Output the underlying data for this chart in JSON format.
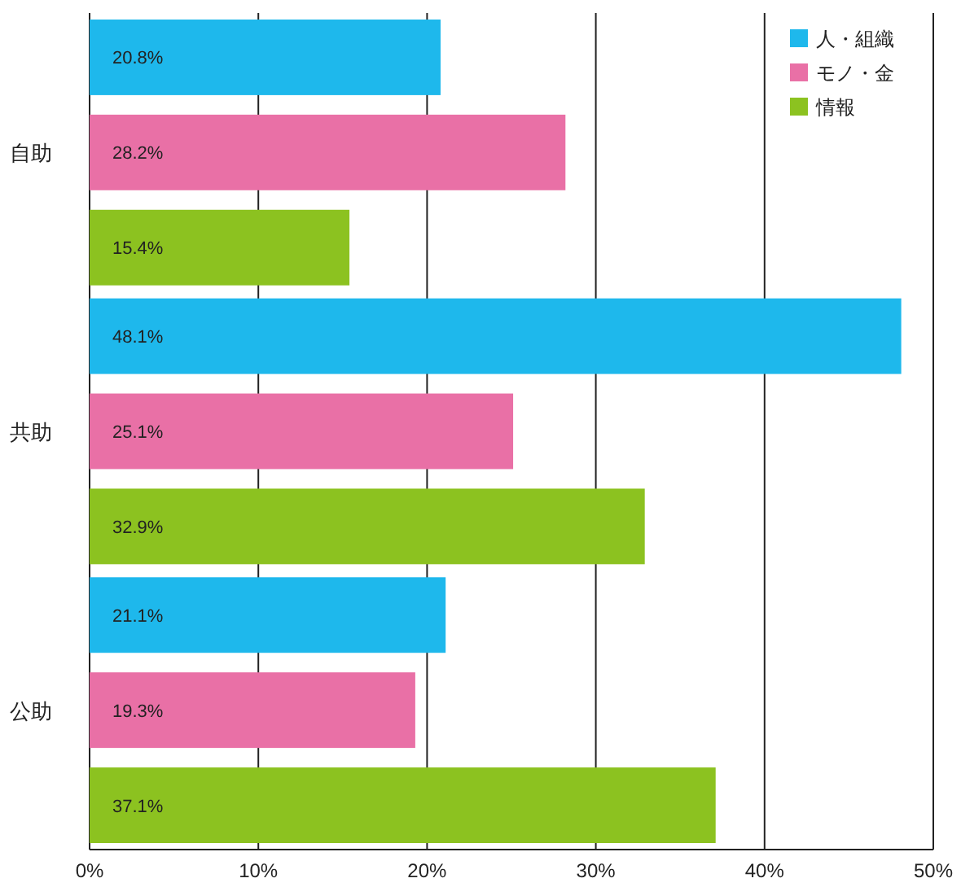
{
  "chart_data": {
    "type": "bar",
    "orientation": "horizontal",
    "categories": [
      "自助",
      "共助",
      "公助"
    ],
    "series": [
      {
        "name": "人・組織",
        "color": "#1eb8ec",
        "values": [
          20.8,
          48.1,
          21.1
        ],
        "value_labels": [
          "20.8%",
          "48.1%",
          "21.1%"
        ]
      },
      {
        "name": "モノ・金",
        "color": "#e970a6",
        "values": [
          28.2,
          25.1,
          19.3
        ],
        "value_labels": [
          "28.2%",
          "25.1%",
          "19.3%"
        ]
      },
      {
        "name": "情報",
        "color": "#8cc220",
        "values": [
          15.4,
          32.9,
          37.1
        ],
        "value_labels": [
          "15.4%",
          "32.9%",
          "37.1%"
        ]
      }
    ],
    "xlim": [
      0,
      50
    ],
    "xticks": [
      {
        "value": 0,
        "label": "0%"
      },
      {
        "value": 10,
        "label": "10%"
      },
      {
        "value": 20,
        "label": "20%"
      },
      {
        "value": 30,
        "label": "30%"
      },
      {
        "value": 40,
        "label": "40%"
      },
      {
        "value": 50,
        "label": "50%"
      }
    ],
    "grid": "x",
    "legend": "top right"
  }
}
